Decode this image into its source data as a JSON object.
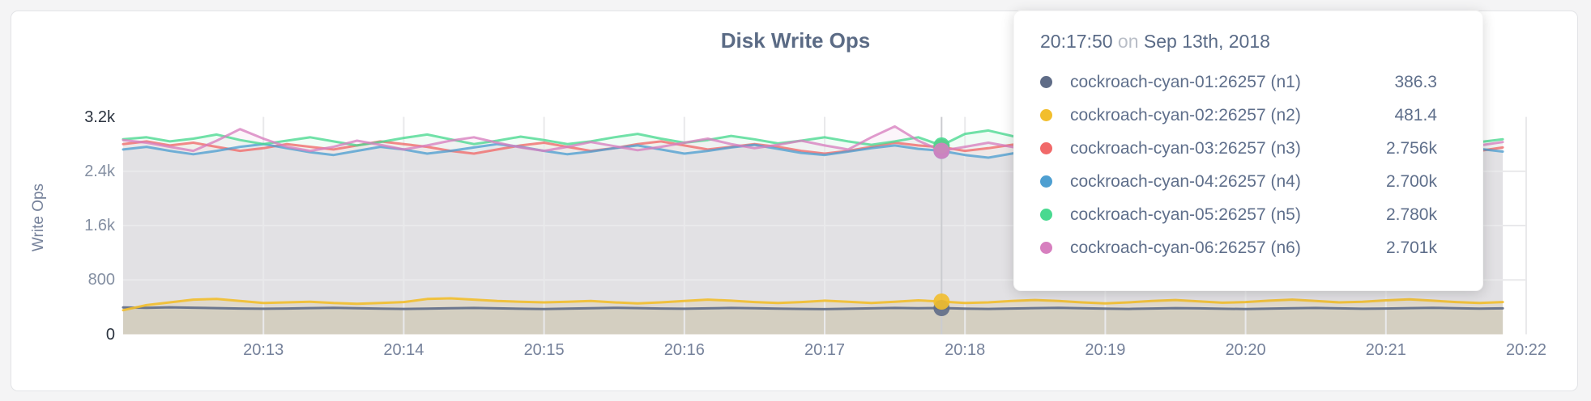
{
  "chart": {
    "title": "Disk Write Ops",
    "y_axis_title": "Write Ops"
  },
  "tooltip": {
    "time": "20:17:50",
    "conjunction": "on",
    "date": "Sep 13th, 2018",
    "rows": [
      {
        "label": "cockroach-cyan-01:26257 (n1)",
        "value": "386.3"
      },
      {
        "label": "cockroach-cyan-02:26257 (n2)",
        "value": "481.4"
      },
      {
        "label": "cockroach-cyan-03:26257 (n3)",
        "value": "2.756k"
      },
      {
        "label": "cockroach-cyan-04:26257 (n4)",
        "value": "2.700k"
      },
      {
        "label": "cockroach-cyan-05:26257 (n5)",
        "value": "2.780k"
      },
      {
        "label": "cockroach-cyan-06:26257 (n6)",
        "value": "2.701k"
      }
    ]
  },
  "chart_data": {
    "type": "area",
    "title": "Disk Write Ops",
    "ylabel": "Write Ops",
    "ylim": [
      0,
      3200
    ],
    "grid": true,
    "legend_position": "none",
    "x_axis": {
      "start_time": "20:12:00",
      "step_seconds": 10,
      "ticks": [
        {
          "label": "20:13",
          "minute": 13
        },
        {
          "label": "20:14",
          "minute": 14
        },
        {
          "label": "20:15",
          "minute": 15
        },
        {
          "label": "20:16",
          "minute": 16
        },
        {
          "label": "20:17",
          "minute": 17
        },
        {
          "label": "20:18",
          "minute": 18
        },
        {
          "label": "20:19",
          "minute": 19
        },
        {
          "label": "20:20",
          "minute": 20
        },
        {
          "label": "20:21",
          "minute": 21
        },
        {
          "label": "20:22",
          "minute": 22
        }
      ]
    },
    "y_axis": {
      "ticks": [
        {
          "label": "3.2k",
          "value": 3200,
          "strong": true,
          "gridline": false
        },
        {
          "label": "2.4k",
          "value": 2400,
          "strong": false,
          "gridline": true
        },
        {
          "label": "1.6k",
          "value": 1600,
          "strong": false,
          "gridline": true
        },
        {
          "label": "800",
          "value": 800,
          "strong": false,
          "gridline": true
        },
        {
          "label": "0",
          "value": 0,
          "strong": true,
          "gridline": false
        }
      ]
    },
    "hover": {
      "index": 35,
      "time": "20:17:50"
    },
    "series": [
      {
        "name": "cockroach-cyan-01:26257 (n1)",
        "color": "#5F6C87",
        "values": [
          396,
          390,
          398,
          392,
          386,
          380,
          376,
          380,
          386,
          390,
          384,
          378,
          374,
          378,
          384,
          388,
          382,
          376,
          372,
          378,
          384,
          390,
          386,
          380,
          376,
          382,
          388,
          384,
          378,
          374,
          370,
          376,
          382,
          388,
          384,
          386.3,
          378,
          374,
          380,
          386,
          390,
          384,
          378,
          374,
          380,
          386,
          382,
          376,
          372,
          378,
          384,
          388,
          382,
          376,
          380,
          386,
          390,
          384,
          378,
          382
        ]
      },
      {
        "name": "cockroach-cyan-02:26257 (n2)",
        "color": "#F2BE2C",
        "values": [
          355,
          430,
          470,
          510,
          520,
          490,
          460,
          470,
          480,
          460,
          450,
          460,
          475,
          520,
          530,
          510,
          490,
          480,
          470,
          480,
          490,
          470,
          455,
          470,
          490,
          510,
          495,
          475,
          460,
          475,
          495,
          480,
          460,
          480,
          500,
          481.4,
          460,
          470,
          490,
          505,
          490,
          470,
          455,
          470,
          490,
          505,
          485,
          465,
          475,
          495,
          510,
          490,
          470,
          480,
          500,
          515,
          495,
          475,
          460,
          475
        ]
      },
      {
        "name": "cockroach-cyan-03:26257 (n3)",
        "color": "#F16969",
        "values": [
          2800,
          2840,
          2780,
          2820,
          2760,
          2700,
          2740,
          2800,
          2760,
          2720,
          2780,
          2840,
          2800,
          2760,
          2700,
          2660,
          2720,
          2780,
          2820,
          2760,
          2700,
          2740,
          2800,
          2840,
          2780,
          2720,
          2760,
          2800,
          2760,
          2700,
          2660,
          2700,
          2760,
          2820,
          2780,
          2756,
          2700,
          2740,
          2790,
          2830,
          2770,
          2710,
          2750,
          2800,
          2760,
          2700,
          2660,
          2710,
          2770,
          2820,
          2780,
          2730,
          2690,
          2740,
          2800,
          2840,
          2790,
          2740,
          2700,
          2750
        ]
      },
      {
        "name": "cockroach-cyan-04:26257 (n4)",
        "color": "#4E9FD1",
        "values": [
          2720,
          2760,
          2700,
          2650,
          2700,
          2760,
          2800,
          2740,
          2680,
          2640,
          2700,
          2760,
          2720,
          2660,
          2700,
          2750,
          2800,
          2760,
          2700,
          2650,
          2690,
          2740,
          2780,
          2720,
          2660,
          2700,
          2750,
          2790,
          2730,
          2670,
          2640,
          2690,
          2740,
          2780,
          2730,
          2700,
          2640,
          2600,
          2660,
          2720,
          2770,
          2720,
          2660,
          2700,
          2750,
          2790,
          2740,
          2680,
          2640,
          2690,
          2740,
          2780,
          2730,
          2680,
          2640,
          2690,
          2740,
          2780,
          2730,
          2690
        ]
      },
      {
        "name": "cockroach-cyan-05:26257 (n5)",
        "color": "#49D990",
        "values": [
          2870,
          2900,
          2840,
          2880,
          2940,
          2860,
          2800,
          2850,
          2900,
          2840,
          2780,
          2830,
          2890,
          2940,
          2870,
          2800,
          2850,
          2910,
          2860,
          2800,
          2840,
          2900,
          2950,
          2880,
          2820,
          2860,
          2920,
          2870,
          2810,
          2850,
          2900,
          2840,
          2790,
          2840,
          2900,
          2780,
          2950,
          3000,
          2920,
          2850,
          2800,
          2850,
          2900,
          2840,
          2790,
          2830,
          2880,
          2930,
          2870,
          2810,
          2850,
          2900,
          2850,
          2800,
          2840,
          2890,
          2930,
          2880,
          2830,
          2870
        ]
      },
      {
        "name": "cockroach-cyan-06:26257 (n6)",
        "color": "#D77FBF",
        "values": [
          2860,
          2820,
          2760,
          2700,
          2850,
          3020,
          2880,
          2760,
          2700,
          2760,
          2850,
          2790,
          2720,
          2780,
          2850,
          2900,
          2820,
          2750,
          2700,
          2760,
          2830,
          2770,
          2710,
          2760,
          2820,
          2880,
          2800,
          2740,
          2790,
          2850,
          2780,
          2720,
          2900,
          3060,
          2850,
          2701,
          2760,
          2820,
          2760,
          2700,
          2750,
          2810,
          2860,
          2790,
          2730,
          2780,
          2840,
          2780,
          2720,
          2770,
          2830,
          2880,
          2810,
          2750,
          2800,
          2850,
          2790,
          2730,
          2780,
          2830
        ]
      }
    ]
  }
}
